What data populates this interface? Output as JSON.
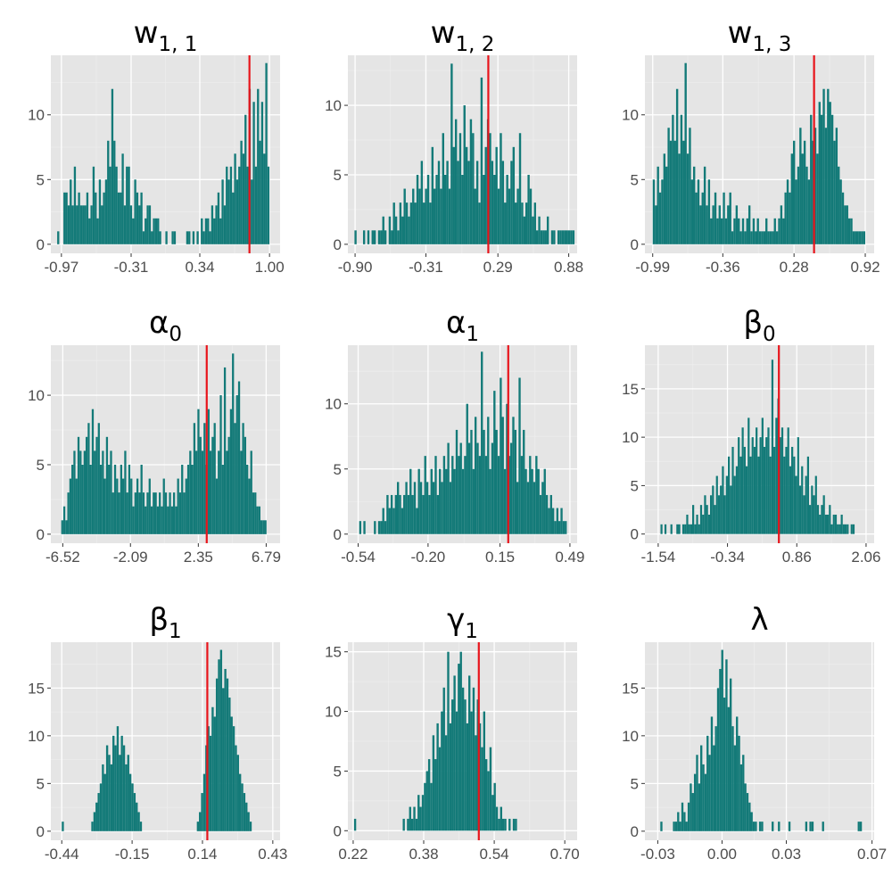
{
  "colors": {
    "panel_bg": "#e5e5e5",
    "grid_major": "#ffffff",
    "grid_minor": "#ededed",
    "bar": "#137a78",
    "ref_line": "#e8141b",
    "tick_text": "#4d4d4d",
    "title_text": "#000000"
  },
  "chart_data": [
    {
      "id": "w11",
      "type": "bar",
      "subtype": "histogram",
      "title": {
        "base": "w",
        "sub": "1, 1"
      },
      "x_ticks": [
        {
          "label": "-0.97",
          "v": -0.97
        },
        {
          "label": "-0.31",
          "v": -0.31
        },
        {
          "label": "0.34",
          "v": 0.34
        },
        {
          "label": "1.00",
          "v": 1.0
        }
      ],
      "xlim": [
        -1.07,
        1.1
      ],
      "y_ticks": [
        0,
        5,
        10
      ],
      "ylim": [
        -0.7,
        14.6
      ],
      "bin_start": -1.01,
      "bin_width": 0.0197,
      "values": [
        1,
        0,
        0,
        4,
        4,
        3,
        5,
        3,
        6,
        3,
        4,
        3,
        3,
        3,
        4,
        2,
        3,
        6,
        4,
        2,
        5,
        3,
        4,
        5,
        8,
        6,
        12,
        8,
        6,
        4,
        4,
        7,
        3,
        6,
        6,
        3,
        2,
        5,
        4,
        3,
        4,
        1,
        2,
        3,
        3,
        1,
        2,
        2,
        2,
        1,
        0,
        0,
        1,
        0,
        0,
        1,
        1,
        0,
        0,
        0,
        0,
        0,
        1,
        1,
        0,
        1,
        0,
        1,
        0,
        2,
        1,
        2,
        2,
        1,
        3,
        2,
        3,
        4,
        2,
        5,
        3,
        6,
        5,
        6,
        4,
        7,
        5,
        6,
        8,
        7,
        10,
        6,
        12,
        5,
        11,
        6,
        12,
        8,
        11,
        7,
        14,
        6
      ],
      "ref_line": 0.81
    },
    {
      "id": "w12",
      "type": "bar",
      "subtype": "histogram",
      "title": {
        "base": "w",
        "sub": "1, 2"
      },
      "x_ticks": [
        {
          "label": "-0.90",
          "v": -0.9
        },
        {
          "label": "-0.31",
          "v": -0.31
        },
        {
          "label": "0.29",
          "v": 0.29
        },
        {
          "label": "0.88",
          "v": 0.88
        }
      ],
      "xlim": [
        -0.96,
        0.95
      ],
      "y_ticks": [
        0,
        5,
        10
      ],
      "ylim": [
        -0.65,
        13.6
      ],
      "bin_start": -0.905,
      "bin_width": 0.0178,
      "values": [
        1,
        0,
        0,
        0,
        1,
        0,
        1,
        0,
        1,
        1,
        0,
        1,
        1,
        2,
        1,
        0,
        2,
        1,
        3,
        2,
        1,
        3,
        2,
        4,
        3,
        2,
        3,
        4,
        3,
        5,
        4,
        6,
        3,
        4,
        5,
        3,
        7,
        4,
        5,
        6,
        4,
        8,
        5,
        6,
        4,
        13,
        7,
        9,
        6,
        8,
        5,
        10,
        7,
        6,
        9,
        8,
        4,
        6,
        3,
        12,
        5,
        7,
        9,
        8,
        6,
        5,
        7,
        4,
        8,
        6,
        3,
        5,
        4,
        6,
        7,
        3,
        4,
        8,
        3,
        2,
        3,
        5,
        4,
        2,
        3,
        1,
        2,
        1,
        1,
        1,
        2,
        0,
        1,
        1,
        0,
        1,
        1,
        1,
        1,
        1,
        1,
        1,
        1
      ],
      "ref_line": 0.21
    },
    {
      "id": "w13",
      "type": "bar",
      "subtype": "histogram",
      "title": {
        "base": "w",
        "sub": "1, 3"
      },
      "x_ticks": [
        {
          "label": "-0.99",
          "v": -0.99
        },
        {
          "label": "-0.36",
          "v": -0.36
        },
        {
          "label": "0.28",
          "v": 0.28
        },
        {
          "label": "0.92",
          "v": 0.92
        }
      ],
      "xlim": [
        -1.06,
        1.0
      ],
      "y_ticks": [
        0,
        5,
        10
      ],
      "ylim": [
        -0.7,
        14.6
      ],
      "bin_start": -0.99,
      "bin_width": 0.0191,
      "values": [
        5,
        3,
        6,
        4,
        5,
        7,
        6,
        9,
        8,
        10,
        8,
        12,
        7,
        10,
        8,
        14,
        7,
        9,
        5,
        6,
        4,
        5,
        3,
        4,
        6,
        3,
        5,
        2,
        3,
        4,
        2,
        3,
        2,
        4,
        2,
        3,
        4,
        1,
        2,
        3,
        2,
        1,
        2,
        1,
        2,
        3,
        1,
        2,
        1,
        2,
        1,
        1,
        1,
        2,
        1,
        1,
        1,
        2,
        1,
        2,
        3,
        2,
        4,
        5,
        4,
        7,
        8,
        5,
        6,
        9,
        7,
        8,
        6,
        5,
        10,
        8,
        9,
        7,
        11,
        10,
        12,
        9,
        12,
        11,
        10,
        8,
        9,
        6,
        5,
        4,
        3,
        3,
        2,
        2,
        1,
        1,
        1,
        1,
        1,
        1
      ],
      "ref_line": 0.46
    },
    {
      "id": "a0",
      "type": "bar",
      "subtype": "histogram",
      "title": {
        "base": "α",
        "sub": "0"
      },
      "x_ticks": [
        {
          "label": "-6.52",
          "v": -6.52
        },
        {
          "label": "-2.09",
          "v": -2.09
        },
        {
          "label": "2.35",
          "v": 2.35
        },
        {
          "label": "6.79",
          "v": 6.79
        }
      ],
      "xlim": [
        -7.3,
        7.7
      ],
      "y_ticks": [
        0,
        5,
        10
      ],
      "ylim": [
        -0.65,
        13.6
      ],
      "bin_start": -6.62,
      "bin_width": 0.133,
      "values": [
        1,
        2,
        1,
        3,
        4,
        5,
        6,
        4,
        7,
        6,
        5,
        6,
        7,
        8,
        5,
        9,
        6,
        7,
        8,
        5,
        6,
        4,
        7,
        5,
        6,
        3,
        5,
        4,
        3,
        5,
        4,
        6,
        3,
        5,
        4,
        2,
        3,
        4,
        3,
        5,
        3,
        2,
        3,
        4,
        2,
        3,
        3,
        2,
        3,
        2,
        4,
        3,
        2,
        3,
        2,
        3,
        2,
        4,
        3,
        5,
        3,
        4,
        5,
        6,
        5,
        8,
        6,
        9,
        7,
        6,
        8,
        5,
        9,
        6,
        7,
        8,
        4,
        6,
        10,
        5,
        12,
        6,
        7,
        9,
        13,
        8,
        10,
        11,
        6,
        8,
        7,
        5,
        4,
        6,
        3,
        3,
        2,
        2,
        1,
        1,
        1
      ],
      "ref_line": 2.9
    },
    {
      "id": "a1",
      "type": "bar",
      "subtype": "histogram",
      "title": {
        "base": "α",
        "sub": "1"
      },
      "x_ticks": [
        {
          "label": "-0.54",
          "v": -0.54
        },
        {
          "label": "-0.20",
          "v": -0.2
        },
        {
          "label": "0.15",
          "v": 0.15
        },
        {
          "label": "0.49",
          "v": 0.49
        }
      ],
      "xlim": [
        -0.59,
        0.525
      ],
      "y_ticks": [
        0,
        5,
        10
      ],
      "ylim": [
        -0.7,
        14.5
      ],
      "bin_start": -0.535,
      "bin_width": 0.0102,
      "values": [
        1,
        0,
        1,
        0,
        0,
        0,
        0,
        1,
        0,
        1,
        1,
        2,
        1,
        3,
        2,
        3,
        2,
        3,
        4,
        3,
        2,
        3,
        4,
        3,
        5,
        3,
        4,
        2,
        5,
        4,
        3,
        6,
        4,
        3,
        5,
        4,
        6,
        3,
        5,
        4,
        6,
        5,
        7,
        4,
        6,
        5,
        8,
        6,
        7,
        5,
        6,
        10,
        7,
        8,
        5,
        9,
        7,
        6,
        14,
        8,
        6,
        9,
        5,
        7,
        11,
        8,
        6,
        12,
        9,
        5,
        10,
        6,
        7,
        9,
        8,
        4,
        12,
        6,
        8,
        5,
        4,
        6,
        5,
        4,
        6,
        5,
        3,
        4,
        5,
        3,
        2,
        3,
        2,
        1,
        2,
        1,
        2,
        1,
        1
      ],
      "ref_line": 0.19
    },
    {
      "id": "b0",
      "type": "bar",
      "subtype": "histogram",
      "title": {
        "base": "β",
        "sub": "0"
      },
      "x_ticks": [
        {
          "label": "-1.54",
          "v": -1.54
        },
        {
          "label": "-0.34",
          "v": -0.34
        },
        {
          "label": "0.86",
          "v": 0.86
        },
        {
          "label": "2.06",
          "v": 2.06
        }
      ],
      "xlim": [
        -1.77,
        2.2
      ],
      "y_ticks": [
        0,
        5,
        10,
        15
      ],
      "ylim": [
        -0.95,
        19.5
      ],
      "bin_start": -1.5,
      "bin_width": 0.0343,
      "values": [
        1,
        0,
        1,
        0,
        0,
        1,
        0,
        0,
        1,
        1,
        0,
        1,
        1,
        2,
        1,
        1,
        3,
        1,
        2,
        1,
        3,
        2,
        4,
        3,
        2,
        4,
        5,
        3,
        6,
        4,
        5,
        7,
        4,
        6,
        8,
        5,
        9,
        6,
        7,
        10,
        8,
        11,
        9,
        7,
        12,
        8,
        10,
        9,
        11,
        8,
        10,
        12,
        9,
        10,
        11,
        8,
        18,
        9,
        12,
        14,
        10,
        11,
        8,
        9,
        11,
        7,
        9,
        8,
        6,
        10,
        5,
        7,
        4,
        6,
        8,
        3,
        5,
        4,
        6,
        3,
        2,
        3,
        4,
        2,
        2,
        3,
        1,
        2,
        2,
        1,
        1,
        2,
        1,
        1,
        1,
        0,
        1,
        1
      ],
      "ref_line": 0.55
    },
    {
      "id": "b1",
      "type": "bar",
      "subtype": "histogram",
      "title": {
        "base": "β",
        "sub": "1"
      },
      "x_ticks": [
        {
          "label": "-0.44",
          "v": -0.44
        },
        {
          "label": "-0.15",
          "v": -0.15
        },
        {
          "label": "0.14",
          "v": 0.14
        },
        {
          "label": "0.43",
          "v": 0.43
        }
      ],
      "xlim": [
        -0.485,
        0.46
      ],
      "y_ticks": [
        0,
        5,
        10,
        15
      ],
      "ylim": [
        -0.95,
        19.8
      ],
      "bin_start": -0.44,
      "bin_width": 0.0087,
      "values": [
        1,
        0,
        0,
        0,
        0,
        0,
        0,
        0,
        0,
        0,
        0,
        0,
        0,
        0,
        1,
        2,
        3,
        4,
        5,
        7,
        6,
        9,
        8,
        7,
        10,
        9,
        11,
        8,
        10,
        9,
        7,
        8,
        6,
        5,
        4,
        3,
        2,
        1,
        0,
        0,
        0,
        0,
        0,
        0,
        0,
        0,
        0,
        0,
        0,
        0,
        0,
        0,
        0,
        0,
        0,
        0,
        0,
        0,
        0,
        0,
        0,
        0,
        0,
        0,
        1,
        2,
        4,
        6,
        9,
        11,
        10,
        13,
        12,
        16,
        18,
        19,
        15,
        17,
        16,
        14,
        12,
        11,
        9,
        8,
        6,
        5,
        4,
        3,
        2,
        1
      ],
      "ref_line": 0.16
    },
    {
      "id": "g1",
      "type": "bar",
      "subtype": "histogram",
      "title": {
        "base": "γ",
        "sub": "1"
      },
      "x_ticks": [
        {
          "label": "0.22",
          "v": 0.22
        },
        {
          "label": "0.38",
          "v": 0.38
        },
        {
          "label": "0.54",
          "v": 0.54
        },
        {
          "label": "0.70",
          "v": 0.7
        }
      ],
      "xlim": [
        0.208,
        0.728
      ],
      "y_ticks": [
        0,
        5,
        10,
        15
      ],
      "ylim": [
        -0.8,
        15.8
      ],
      "bin_start": 0.222,
      "bin_width": 0.0048,
      "values": [
        1,
        0,
        0,
        0,
        0,
        0,
        0,
        0,
        0,
        0,
        0,
        0,
        0,
        0,
        0,
        0,
        0,
        0,
        0,
        0,
        0,
        0,
        0,
        1,
        0,
        1,
        2,
        1,
        2,
        1,
        3,
        2,
        3,
        4,
        5,
        6,
        4,
        8,
        6,
        9,
        7,
        10,
        12,
        8,
        15,
        9,
        11,
        13,
        10,
        14,
        15,
        12,
        11,
        9,
        13,
        10,
        12,
        8,
        11,
        9,
        7,
        10,
        6,
        5,
        7,
        3,
        4,
        2,
        1,
        2,
        1,
        1,
        0,
        1,
        0,
        1,
        1
      ],
      "ref_line": 0.505
    },
    {
      "id": "lambda",
      "type": "bar",
      "subtype": "histogram",
      "title": {
        "base": "λ",
        "sub": ""
      },
      "x_ticks": [
        {
          "label": "-0.03",
          "v": -0.03
        },
        {
          "label": "0.00",
          "v": 0.0
        },
        {
          "label": "0.03",
          "v": 0.03
        },
        {
          "label": "0.07",
          "v": 0.07
        }
      ],
      "xlim": [
        -0.036,
        0.071
      ],
      "y_ticks": [
        0,
        5,
        10,
        15
      ],
      "ylim": [
        -0.95,
        19.8
      ],
      "bin_start": -0.0288,
      "bin_width": 0.00098,
      "values": [
        1,
        0,
        0,
        0,
        0,
        0,
        1,
        1,
        2,
        1,
        3,
        2,
        1,
        3,
        5,
        4,
        6,
        8,
        5,
        9,
        7,
        6,
        10,
        8,
        12,
        9,
        11,
        15,
        17,
        19,
        14,
        18,
        13,
        16,
        11,
        9,
        12,
        10,
        7,
        8,
        5,
        4,
        3,
        2,
        1,
        1,
        0,
        1,
        1,
        0,
        0,
        0,
        0,
        1,
        0,
        0,
        1,
        0,
        0,
        0,
        0,
        1,
        0,
        0,
        0,
        0,
        0,
        0,
        0,
        1,
        0,
        1,
        1,
        0,
        0,
        0,
        0,
        1,
        0,
        0,
        0,
        0,
        0,
        0,
        0,
        0,
        0,
        0,
        0,
        0,
        0,
        0,
        0,
        0,
        1,
        1
      ]
    }
  ]
}
